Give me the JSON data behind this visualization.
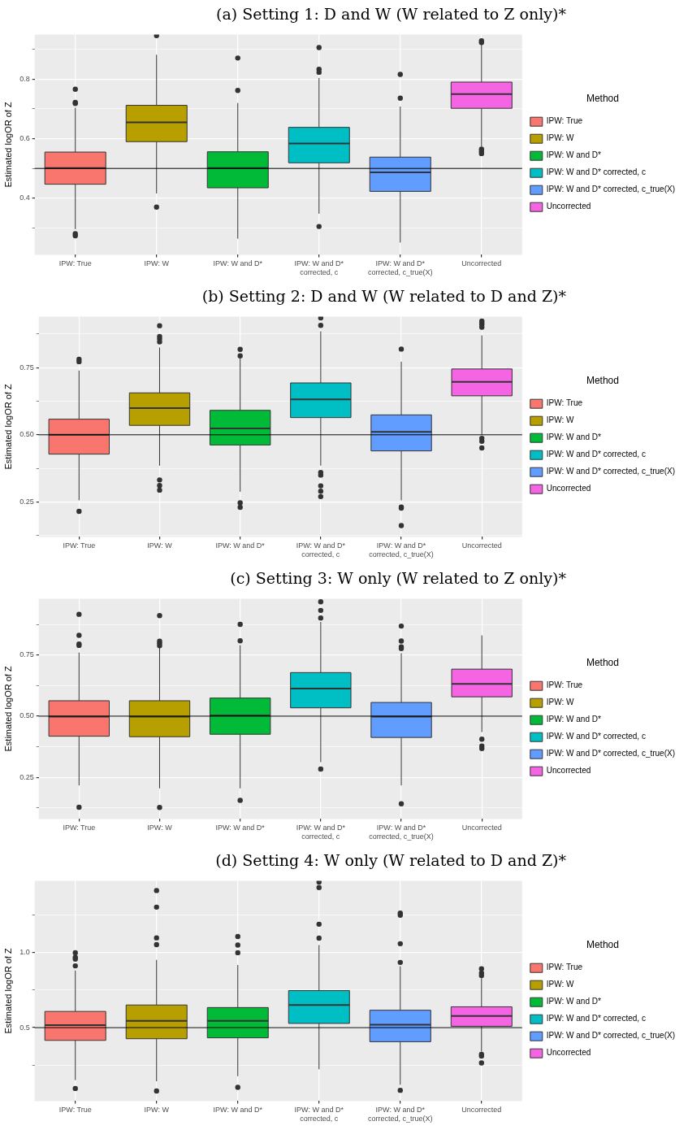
{
  "chart_data": [
    {
      "type": "box",
      "title": "(a) Setting 1: D and W (W related to Z only)*",
      "ylabel": "Estimated logOR of Z",
      "legend_title": "Method",
      "legend": "right",
      "grid": true,
      "categories": [
        "IPW: True",
        "IPW: W",
        "IPW: W and D*",
        "IPW: W and D*\ncorrected, c",
        "IPW: W and D*\ncorrected, c_true(X)",
        "Uncorrected"
      ],
      "ylim": [
        0.21,
        0.95
      ],
      "yticks": [
        {
          "value": 0.3,
          "label": null
        },
        0.4,
        {
          "value": 0.5,
          "label": null
        },
        0.6,
        {
          "value": 0.7,
          "label": null
        },
        0.8,
        {
          "value": 0.9,
          "label": null
        }
      ],
      "ref_lines": [
        {
          "axis": "y",
          "value": 0.5,
          "color": "#000000"
        }
      ],
      "series": [
        {
          "name": "IPW: True",
          "color": "#f8766d",
          "boxes": [
            {
              "low": 0.296,
              "q1": 0.447,
              "median": 0.501,
              "q3": 0.555,
              "high": 0.704,
              "outliers": [
                0.766,
                0.722,
                0.718,
                0.281,
                0.274
              ]
            },
            null,
            null,
            null,
            null,
            null
          ]
        },
        {
          "name": "IPW: W",
          "color": "#b79f00",
          "boxes": [
            null,
            {
              "low": 0.416,
              "q1": 0.59,
              "median": 0.655,
              "q3": 0.712,
              "high": 0.882,
              "outliers": [
                0.946,
                0.37
              ]
            },
            null,
            null,
            null,
            null
          ]
        },
        {
          "name": "IPW: W and D*",
          "color": "#00ba38",
          "boxes": [
            null,
            null,
            {
              "low": 0.264,
              "q1": 0.435,
              "median": 0.501,
              "q3": 0.556,
              "high": 0.72,
              "outliers": [
                0.871,
                0.762
              ]
            },
            null,
            null,
            null
          ]
        },
        {
          "name": "IPW: W and D*\ncorrected, c",
          "color": "#00bfc4",
          "boxes": [
            null,
            null,
            null,
            {
              "low": 0.348,
              "q1": 0.519,
              "median": 0.584,
              "q3": 0.638,
              "high": 0.804,
              "outliers": [
                0.906,
                0.833,
                0.823,
                0.305
              ]
            },
            null,
            null
          ]
        },
        {
          "name": "IPW: W and D*\ncorrected, c_true(X)",
          "color": "#619cff",
          "boxes": [
            null,
            null,
            null,
            null,
            {
              "low": 0.251,
              "q1": 0.423,
              "median": 0.487,
              "q3": 0.538,
              "high": 0.708,
              "outliers": [
                0.816,
                0.736
              ]
            },
            null
          ]
        },
        {
          "name": "Uncorrected",
          "color": "#f564e3",
          "boxes": [
            null,
            null,
            null,
            null,
            null,
            {
              "low": 0.573,
              "q1": 0.702,
              "median": 0.75,
              "q3": 0.79,
              "high": 0.918,
              "outliers": [
                0.929,
                0.923,
                0.565,
                0.557,
                0.55
              ]
            }
          ]
        }
      ]
    },
    {
      "type": "box",
      "title": "(b) Setting 2: D and W (W related to D and Z)*",
      "ylabel": "Estimated logOR of Z",
      "legend_title": "Method",
      "legend": "right",
      "grid": true,
      "categories": [
        "IPW: True",
        "IPW: W",
        "IPW: W and D*",
        "IPW: W and D*\ncorrected, c",
        "IPW: W and D*\ncorrected, c_true(X)",
        "Uncorrected"
      ],
      "ylim": [
        0.12,
        0.94
      ],
      "yticks": [
        {
          "value": 0.125,
          "label": null
        },
        {
          "value": 0.25,
          "label": "0.25"
        },
        {
          "value": 0.375,
          "label": null
        },
        {
          "value": 0.5,
          "label": "0.50"
        },
        {
          "value": 0.625,
          "label": null
        },
        {
          "value": 0.75,
          "label": "0.75"
        },
        {
          "value": 0.875,
          "label": null
        }
      ],
      "ref_lines": [
        {
          "axis": "y",
          "value": 0.5,
          "color": "#000000"
        }
      ],
      "series": [
        {
          "name": "IPW: True",
          "color": "#f8766d",
          "boxes": [
            {
              "low": 0.256,
              "q1": 0.428,
              "median": 0.5,
              "q3": 0.558,
              "high": 0.739,
              "outliers": [
                0.781,
                0.772,
                0.215
              ]
            },
            null,
            null,
            null,
            null,
            null
          ]
        },
        {
          "name": "IPW: W",
          "color": "#b79f00",
          "boxes": [
            null,
            {
              "low": 0.385,
              "q1": 0.535,
              "median": 0.599,
              "q3": 0.656,
              "high": 0.825,
              "outliers": [
                0.906,
                0.866,
                0.857,
                0.846,
                0.332,
                0.311,
                0.294
              ]
            },
            null,
            null,
            null,
            null
          ]
        },
        {
          "name": "IPW: W and D*",
          "color": "#00ba38",
          "boxes": [
            null,
            null,
            {
              "low": 0.288,
              "q1": 0.462,
              "median": 0.524,
              "q3": 0.591,
              "high": 0.8,
              "outliers": [
                0.818,
                0.794,
                0.247,
                0.23
              ]
            },
            null,
            null,
            null
          ]
        },
        {
          "name": "IPW: W and D*\ncorrected, c",
          "color": "#00bfc4",
          "boxes": [
            null,
            null,
            null,
            {
              "low": 0.385,
              "q1": 0.564,
              "median": 0.632,
              "q3": 0.693,
              "high": 0.885,
              "outliers": [
                0.935,
                0.907,
                0.36,
                0.35,
                0.31,
                0.29,
                0.27
              ]
            },
            null,
            null
          ]
        },
        {
          "name": "IPW: W and D*\ncorrected, c_true(X)",
          "color": "#619cff",
          "boxes": [
            null,
            null,
            null,
            null,
            {
              "low": 0.256,
              "q1": 0.44,
              "median": 0.511,
              "q3": 0.574,
              "high": 0.772,
              "outliers": [
                0.819,
                0.231,
                0.227,
                0.162
              ]
            },
            null
          ]
        },
        {
          "name": "Uncorrected",
          "color": "#f564e3",
          "boxes": [
            null,
            null,
            null,
            null,
            null,
            {
              "low": 0.5,
              "q1": 0.645,
              "median": 0.697,
              "q3": 0.745,
              "high": 0.87,
              "outliers": [
                0.923,
                0.917,
                0.91,
                0.9,
                0.487,
                0.476,
                0.451
              ]
            }
          ]
        }
      ]
    },
    {
      "type": "box",
      "title": "(c) Setting 3: W only (W related to Z only)*",
      "ylabel": "Estimated logOR of Z",
      "legend_title": "Method",
      "legend": "right",
      "grid": true,
      "categories": [
        "IPW: True",
        "IPW: W",
        "IPW: W and D*",
        "IPW: W and D*\ncorrected, c",
        "IPW: W and D*\ncorrected, c_true(X)",
        "Uncorrected"
      ],
      "ylim": [
        0.08,
        0.98
      ],
      "yticks": [
        {
          "value": 0.125,
          "label": null
        },
        {
          "value": 0.25,
          "label": "0.25"
        },
        {
          "value": 0.375,
          "label": null
        },
        {
          "value": 0.5,
          "label": "0.50"
        },
        {
          "value": 0.625,
          "label": null
        },
        {
          "value": 0.75,
          "label": "0.75"
        },
        {
          "value": 0.875,
          "label": null
        }
      ],
      "ref_lines": [
        {
          "axis": "y",
          "value": 0.5,
          "color": "#000000"
        }
      ],
      "series": [
        {
          "name": "IPW: True",
          "color": "#f8766d",
          "boxes": [
            {
              "low": 0.217,
              "q1": 0.418,
              "median": 0.498,
              "q3": 0.563,
              "high": 0.76,
              "outliers": [
                0.916,
                0.83,
                0.795,
                0.789,
                0.128
              ]
            },
            null,
            null,
            null,
            null,
            null
          ]
        },
        {
          "name": "IPW: W",
          "color": "#b79f00",
          "boxes": [
            null,
            {
              "low": 0.205,
              "q1": 0.416,
              "median": 0.498,
              "q3": 0.563,
              "high": 0.786,
              "outliers": [
                0.911,
                0.806,
                0.798,
                0.788,
                0.127
              ]
            },
            null,
            null,
            null,
            null
          ]
        },
        {
          "name": "IPW: W and D*",
          "color": "#00ba38",
          "boxes": [
            null,
            null,
            {
              "low": 0.205,
              "q1": 0.426,
              "median": 0.503,
              "q3": 0.574,
              "high": 0.79,
              "outliers": [
                0.875,
                0.808,
                0.156
              ]
            },
            null,
            null,
            null
          ]
        },
        {
          "name": "IPW: W and D*\ncorrected, c",
          "color": "#00bfc4",
          "boxes": [
            null,
            null,
            null,
            {
              "low": 0.312,
              "q1": 0.534,
              "median": 0.613,
              "q3": 0.678,
              "high": 0.885,
              "outliers": [
                0.967,
                0.932,
                0.901,
                0.284
              ]
            },
            null,
            null
          ]
        },
        {
          "name": "IPW: W and D*\ncorrected, c_true(X)",
          "color": "#619cff",
          "boxes": [
            null,
            null,
            null,
            null,
            {
              "low": 0.217,
              "q1": 0.413,
              "median": 0.498,
              "q3": 0.556,
              "high": 0.757,
              "outliers": [
                0.868,
                0.807,
                0.783,
                0.776,
                0.142
              ]
            },
            null
          ]
        },
        {
          "name": "Uncorrected",
          "color": "#f564e3",
          "boxes": [
            null,
            null,
            null,
            null,
            null,
            {
              "low": 0.435,
              "q1": 0.579,
              "median": 0.632,
              "q3": 0.692,
              "high": 0.83,
              "outliers": [
                0.406,
                0.378,
                0.368
              ]
            }
          ]
        }
      ]
    },
    {
      "type": "box",
      "title": "(d) Setting 4: W only (W related to D and Z)*",
      "ylabel": "Estimated logOR of Z",
      "legend_title": "Method",
      "legend": "right",
      "grid": true,
      "categories": [
        "IPW: True",
        "IPW: W",
        "IPW: W and D*",
        "IPW: W and D*\ncorrected, c",
        "IPW: W and D*\ncorrected, c_true(X)",
        "Uncorrected"
      ],
      "ylim": [
        0.01,
        1.48
      ],
      "yticks": [
        {
          "value": 0.25,
          "label": null
        },
        0.5,
        {
          "value": 0.75,
          "label": null
        },
        {
          "value": 1.0,
          "label": "1.0"
        },
        {
          "value": 1.25,
          "label": null
        }
      ],
      "ref_lines": [
        {
          "axis": "y",
          "value": 0.5,
          "color": "#000000"
        }
      ],
      "series": [
        {
          "name": "IPW: True",
          "color": "#f8766d",
          "boxes": [
            {
              "low": 0.15,
              "q1": 0.415,
              "median": 0.517,
              "q3": 0.608,
              "high": 0.881,
              "outliers": [
                1.0,
                0.969,
                0.957,
                0.912,
                0.094
              ]
            },
            null,
            null,
            null,
            null,
            null
          ]
        },
        {
          "name": "IPW: W",
          "color": "#b79f00",
          "boxes": [
            null,
            {
              "low": 0.142,
              "q1": 0.426,
              "median": 0.545,
              "q3": 0.651,
              "high": 0.952,
              "outliers": [
                1.415,
                1.304,
                1.099,
                1.054,
                0.077
              ]
            },
            null,
            null,
            null,
            null
          ]
        },
        {
          "name": "IPW: W and D*",
          "color": "#00ba38",
          "boxes": [
            null,
            null,
            {
              "low": 0.176,
              "q1": 0.432,
              "median": 0.545,
              "q3": 0.634,
              "high": 0.918,
              "outliers": [
                1.108,
                1.051,
                1.0,
                0.102
              ]
            },
            null,
            null,
            null
          ]
        },
        {
          "name": "IPW: W and D*\ncorrected, c",
          "color": "#00bfc4",
          "boxes": [
            null,
            null,
            null,
            {
              "low": 0.222,
              "q1": 0.528,
              "median": 0.651,
              "q3": 0.747,
              "high": 1.051,
              "outliers": [
                1.472,
                1.435,
                1.19,
                1.097
              ]
            },
            null,
            null
          ]
        },
        {
          "name": "IPW: W and D*\ncorrected, c_true(X)",
          "color": "#619cff",
          "boxes": [
            null,
            null,
            null,
            null,
            {
              "low": 0.119,
              "q1": 0.406,
              "median": 0.52,
              "q3": 0.616,
              "high": 0.91,
              "outliers": [
                1.264,
                1.25,
                1.06,
                0.935,
                0.082
              ]
            },
            null
          ]
        },
        {
          "name": "Uncorrected",
          "color": "#f564e3",
          "boxes": [
            null,
            null,
            null,
            null,
            null,
            {
              "low": 0.34,
              "q1": 0.509,
              "median": 0.577,
              "q3": 0.639,
              "high": 0.83,
              "outliers": [
                0.892,
                0.864,
                0.847,
                0.321,
                0.31,
                0.264
              ]
            }
          ]
        }
      ]
    }
  ]
}
